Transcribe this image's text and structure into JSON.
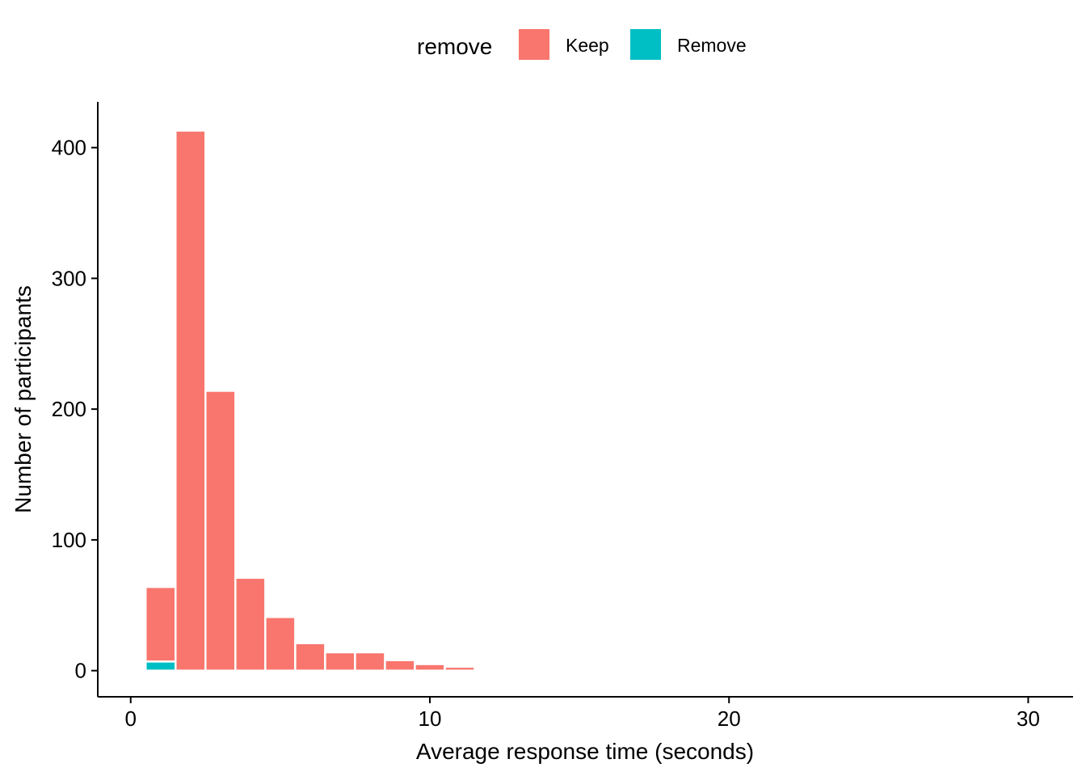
{
  "chart_data": {
    "type": "bar",
    "subtype": "stacked-histogram",
    "xlabel": "Average response time (seconds)",
    "ylabel": "Number of participants",
    "xlim": [
      -1.1,
      31.5
    ],
    "ylim": [
      -20,
      435
    ],
    "xticks": [
      0,
      10,
      20,
      30
    ],
    "yticks": [
      0,
      100,
      200,
      300,
      400
    ],
    "grid": false,
    "legend": {
      "title": "remove",
      "position": "top",
      "entries": [
        {
          "name": "Keep",
          "color": "#F8766D"
        },
        {
          "name": "Remove",
          "color": "#00BFC4"
        }
      ]
    },
    "bin_width": 1,
    "bins": [
      1,
      2,
      3,
      4,
      5,
      6,
      7,
      8,
      9,
      10,
      11,
      12,
      13,
      14,
      15,
      16,
      17,
      18,
      19,
      20,
      21,
      22,
      23,
      24,
      25
    ],
    "series": [
      {
        "name": "Remove",
        "color": "#00BFC4",
        "values": [
          7,
          0,
          0,
          0,
          0,
          0,
          0,
          0,
          0,
          0,
          0,
          0,
          0,
          0,
          0,
          0,
          0,
          0,
          0,
          0,
          0,
          0,
          0,
          0,
          0
        ]
      },
      {
        "name": "Keep",
        "color": "#F8766D",
        "values": [
          57,
          413,
          214,
          71,
          41,
          21,
          14,
          14,
          8,
          5,
          3,
          1,
          0,
          0,
          1,
          0,
          0,
          0,
          0,
          0,
          0,
          0,
          0,
          0,
          1
        ]
      }
    ]
  }
}
